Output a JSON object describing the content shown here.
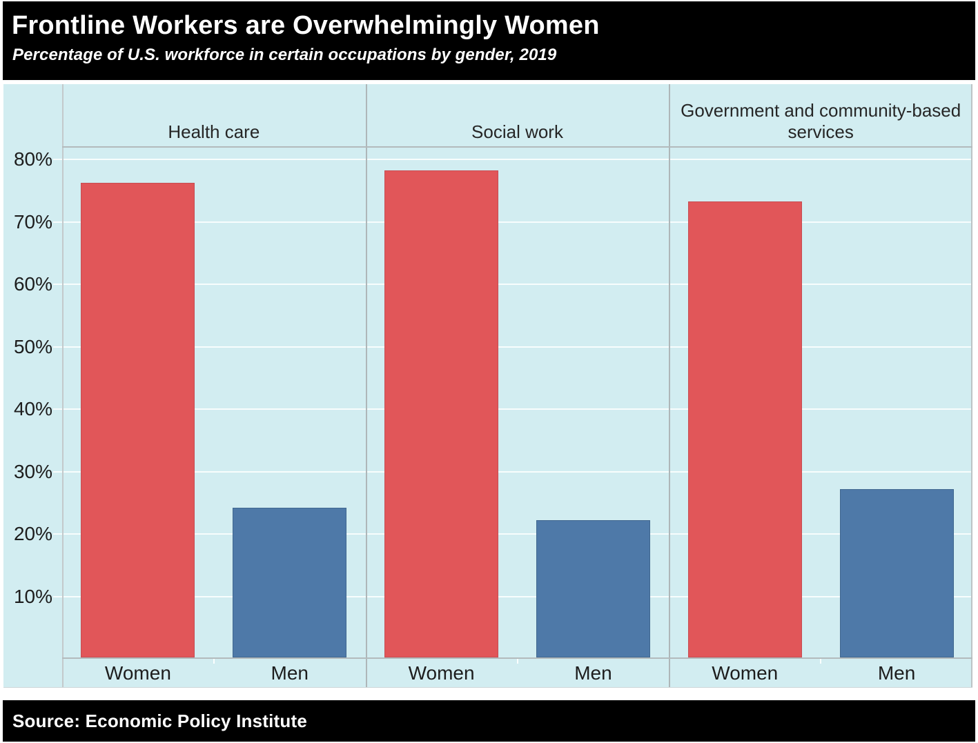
{
  "header": {
    "title": "Frontline Workers are Overwhelmingly Women",
    "subtitle": "Percentage of U.S. workforce in certain occupations by gender, 2019"
  },
  "footer": {
    "source": "Source: Economic Policy Institute"
  },
  "chart_data": {
    "type": "bar",
    "title": "Frontline Workers are Overwhelmingly Women",
    "subtitle": "Percentage of U.S. workforce in certain occupations by gender, 2019",
    "source": "Source: Economic Policy Institute",
    "panels": [
      {
        "title": "Health care",
        "categories": [
          "Women",
          "Men"
        ],
        "values": [
          76,
          24
        ]
      },
      {
        "title": "Social work",
        "categories": [
          "Women",
          "Men"
        ],
        "values": [
          78,
          22
        ]
      },
      {
        "title": "Government and community-based services",
        "categories": [
          "Women",
          "Men"
        ],
        "values": [
          73,
          27
        ]
      }
    ],
    "y_ticks": [
      "80%",
      "70%",
      "60%",
      "50%",
      "40%",
      "30%",
      "20%",
      "10%"
    ],
    "y_tick_values": [
      80,
      70,
      60,
      50,
      40,
      30,
      20,
      10
    ],
    "ylim": [
      0,
      82
    ],
    "ylabel": "",
    "xlabel": "",
    "grid": true,
    "legend": "none",
    "colors": {
      "women_bar": "#e15659",
      "men_bar": "#4e79a8",
      "chart_background": "#d2edf1",
      "gridline": "#ffffff",
      "title_bar_background": "#000000",
      "title_text": "#ffffff",
      "axis_text": "#1d1d1d"
    }
  }
}
